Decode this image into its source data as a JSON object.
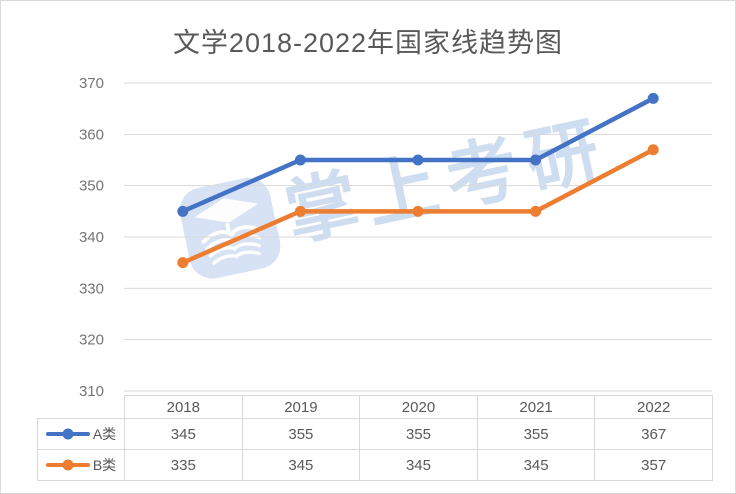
{
  "title": "文学2018-2022年国家线趋势图",
  "watermark": {
    "text": "掌上考研",
    "color": "#a9c2e6",
    "logo_fill": "#b8cdec"
  },
  "chart_data": {
    "type": "line",
    "title": "文学2018-2022年国家线趋势图",
    "categories": [
      "2018",
      "2019",
      "2020",
      "2021",
      "2022"
    ],
    "series": [
      {
        "name": "A类",
        "color": "#4472C4",
        "values": [
          345,
          355,
          355,
          355,
          367
        ]
      },
      {
        "name": "B类",
        "color": "#ED7D31",
        "values": [
          335,
          345,
          345,
          345,
          357
        ]
      }
    ],
    "ylim": [
      310,
      370
    ],
    "yticks": [
      370,
      360,
      350,
      340,
      330,
      320,
      310
    ],
    "grid": true,
    "gridline_color": "#d9d9d9",
    "tick_color": "#767676",
    "legend_position": "table-left"
  }
}
